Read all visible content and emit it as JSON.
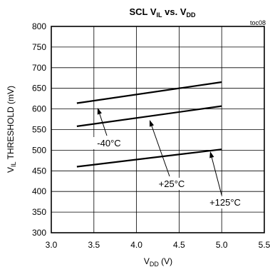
{
  "chart_data": {
    "type": "line",
    "title": "SCL V",
    "title_sub_1": "IL",
    "title_mid": " vs. V",
    "title_sub_2": "DD",
    "figure_code": "toc08",
    "xlabel_main": "V",
    "xlabel_sub": "DD",
    "xlabel_unit": " (V)",
    "ylabel_main": "V",
    "ylabel_sub": "IL",
    "ylabel_unit": " THRESHOLD (mV)",
    "xlim": [
      3.0,
      5.5
    ],
    "ylim": [
      300,
      800
    ],
    "x_ticks": [
      "3.0",
      "3.5",
      "4.0",
      "4.5",
      "5.0",
      "5.5"
    ],
    "y_ticks": [
      "300",
      "350",
      "400",
      "450",
      "500",
      "550",
      "600",
      "650",
      "700",
      "750",
      "800"
    ],
    "grid": true,
    "series": [
      {
        "name": "-40°C",
        "x": [
          3.3,
          5.0
        ],
        "y": [
          614,
          665
        ]
      },
      {
        "name": "+25°C",
        "x": [
          3.3,
          5.0
        ],
        "y": [
          558,
          607
        ]
      },
      {
        "name": "+125°C",
        "x": [
          3.3,
          5.0
        ],
        "y": [
          460,
          502
        ]
      }
    ],
    "annotations": [
      {
        "series": "-40°C",
        "text": "-40°C"
      },
      {
        "series": "+25°C",
        "text": "+25°C"
      },
      {
        "series": "+125°C",
        "text": "+125°C"
      }
    ]
  }
}
